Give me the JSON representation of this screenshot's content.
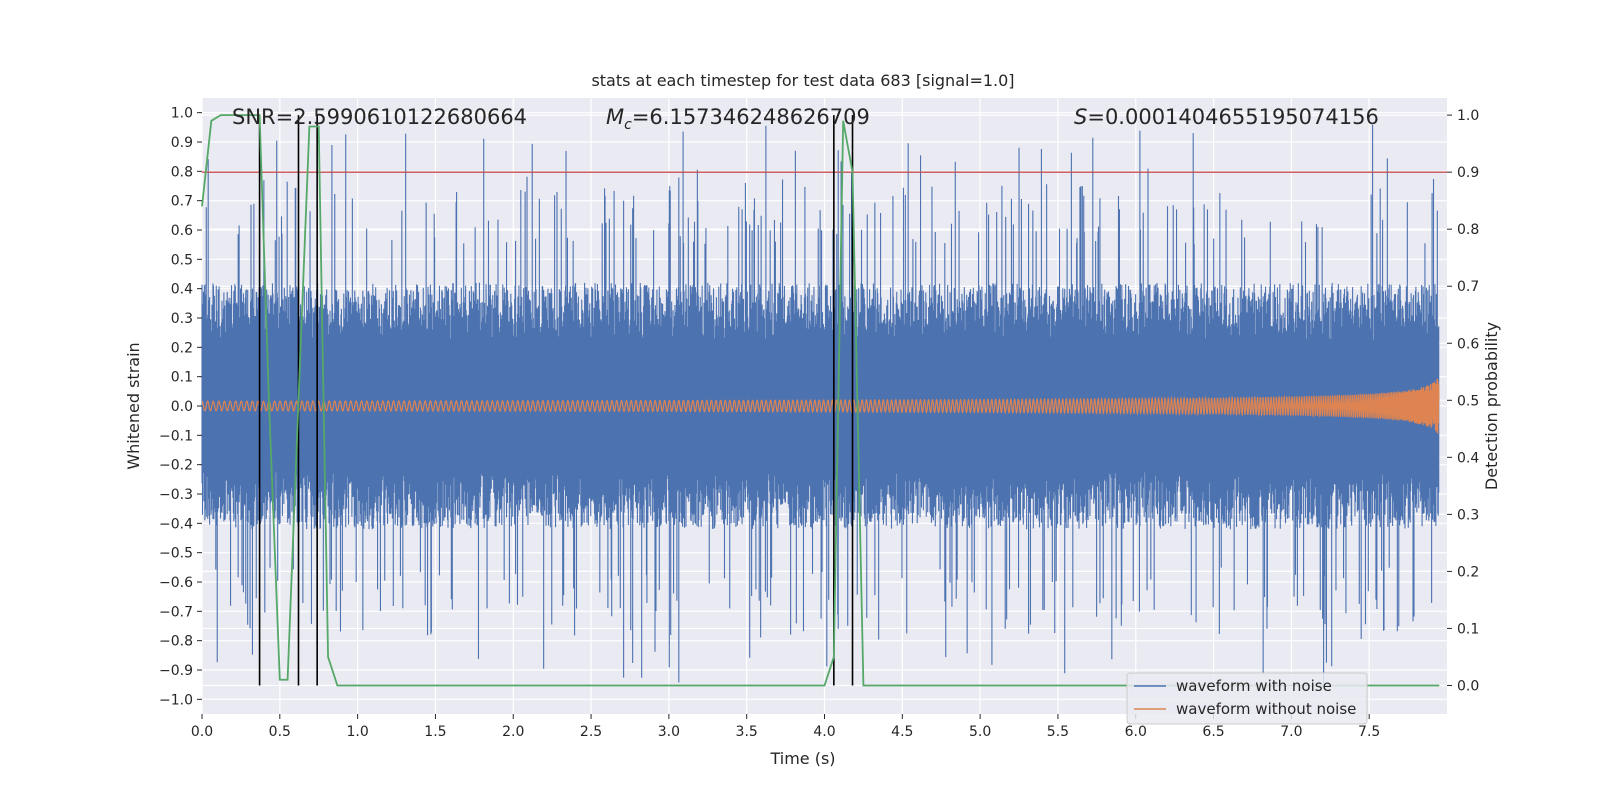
{
  "chart_data": {
    "type": "line",
    "title": "stats at each timestep for test data 683 [signal=1.0]",
    "xlabel": "Time (s)",
    "ylabel": "Whitened strain",
    "y2label": "Detection probability",
    "xlim": [
      0.0,
      8.0
    ],
    "ylim": [
      -1.05,
      1.05
    ],
    "y2lim": [
      -0.05,
      1.03
    ],
    "x_ticks": [
      0.0,
      0.5,
      1.0,
      1.5,
      2.0,
      2.5,
      3.0,
      3.5,
      4.0,
      4.5,
      5.0,
      5.5,
      6.0,
      6.5,
      7.0,
      7.5
    ],
    "x_tick_labels": [
      "0.0",
      "0.5",
      "1.0",
      "1.5",
      "2.0",
      "2.5",
      "3.0",
      "3.5",
      "4.0",
      "4.5",
      "5.0",
      "5.5",
      "6.0",
      "6.5",
      "7.0",
      "7.5"
    ],
    "y_ticks": [
      1.0,
      0.9,
      0.8,
      0.7,
      0.6,
      0.5,
      0.4,
      0.3,
      0.2,
      0.1,
      0.0,
      -0.1,
      -0.2,
      -0.3,
      -0.4,
      -0.5,
      -0.6,
      -0.7,
      -0.8,
      -0.9,
      -1.0
    ],
    "y_tick_labels": [
      "1.0",
      "0.9",
      "0.8",
      "0.7",
      "0.6",
      "0.5",
      "0.4",
      "0.3",
      "0.2",
      "0.1",
      "0.0",
      "−0.1",
      "−0.2",
      "−0.3",
      "−0.4",
      "−0.5",
      "−0.6",
      "−0.7",
      "−0.8",
      "−0.9",
      "−1.0"
    ],
    "y2_ticks": [
      1.0,
      0.9,
      0.8,
      0.7,
      0.6,
      0.5,
      0.4,
      0.3,
      0.2,
      0.1,
      0.0
    ],
    "y2_tick_labels": [
      "1.0",
      "0.9",
      "0.8",
      "0.7",
      "0.6",
      "0.5",
      "0.4",
      "0.3",
      "0.2",
      "0.1",
      "0.0"
    ],
    "grid": true,
    "legend_position": "bottom-right",
    "annotations": {
      "snr": "SNR=2.5990610122680664",
      "mc_prefix": "M",
      "mc_sub": "c",
      "mc_value": "=6.157346248626709",
      "s_prefix": "S",
      "s_value": "=0.0001404655195074156"
    },
    "threshold_line": {
      "value": 0.9,
      "axis": "right",
      "color": "#c44e52"
    },
    "vertical_lines_x": [
      0.37,
      0.62,
      0.74,
      4.06,
      4.18
    ],
    "series": [
      {
        "name": "waveform with noise",
        "color": "#4c72b0",
        "description": "dense noisy strain",
        "envelope": {
          "typical_abs": 0.4,
          "peak_max": 0.96,
          "trough_min": -0.95
        }
      },
      {
        "name": "waveform without noise",
        "color": "#dd8452",
        "description": "chirp signal growing toward merger",
        "amplitude_start": 0.006,
        "amplitude_end": 0.1,
        "t_end": 7.95
      },
      {
        "name": "detection probability",
        "color": "#55a868",
        "axis": "right",
        "x": [
          0.0,
          0.06,
          0.12,
          0.37,
          0.43,
          0.5,
          0.55,
          0.62,
          0.69,
          0.75,
          0.81,
          0.87,
          4.0,
          4.06,
          4.12,
          4.18,
          4.25,
          7.95
        ],
        "y": [
          0.84,
          0.99,
          1.0,
          1.0,
          0.5,
          0.01,
          0.01,
          0.5,
          0.98,
          0.98,
          0.05,
          0.0,
          0.0,
          0.05,
          0.99,
          0.9,
          0.0,
          0.0
        ]
      }
    ]
  }
}
